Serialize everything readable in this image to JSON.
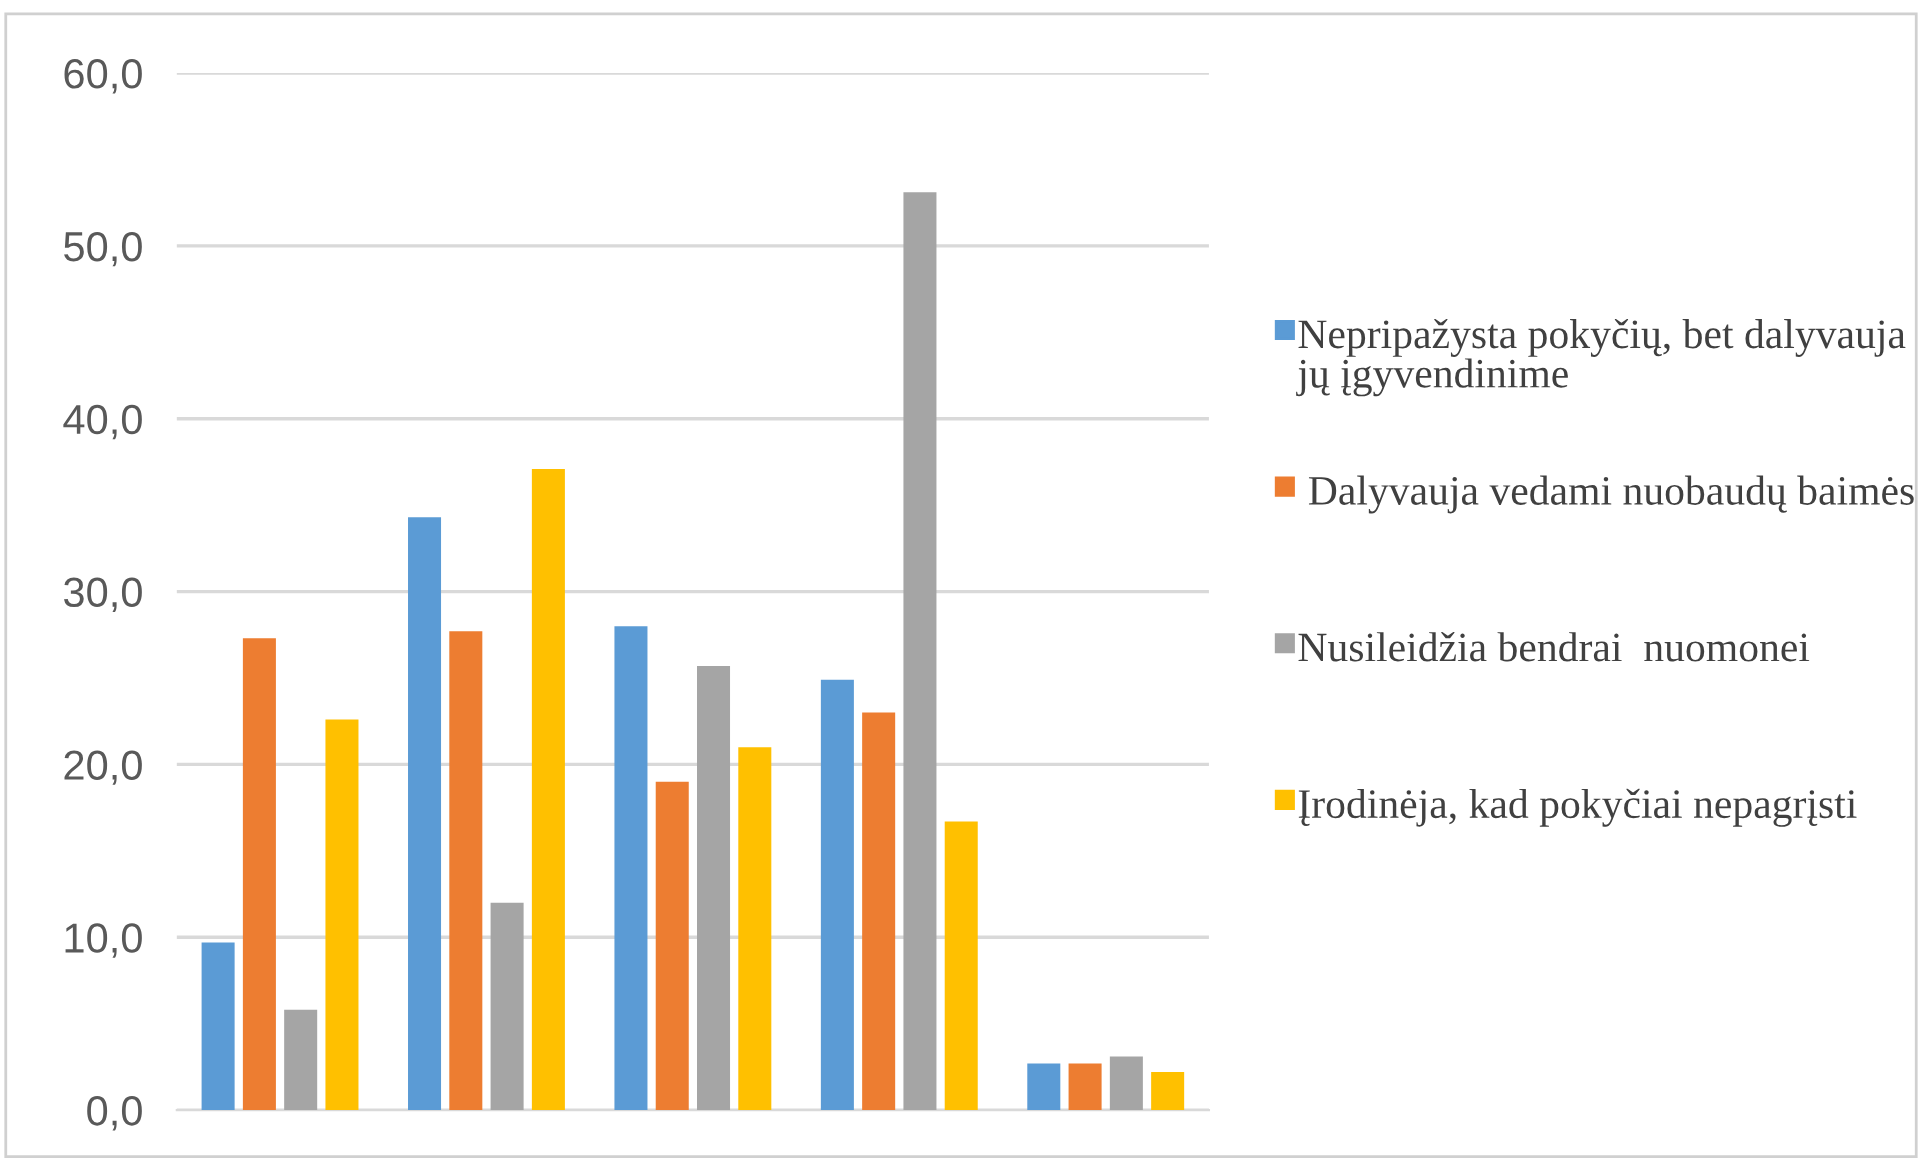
{
  "chart_data": {
    "type": "bar",
    "categories": [
      null,
      null,
      null,
      null,
      null
    ],
    "series": [
      {
        "name": "Nepripažysta pokyčių, bet dalyvauja jų įgyvendinime",
        "color": "#5b9bd5",
        "values": [
          9.7,
          34.3,
          28.0,
          24.9,
          2.7
        ]
      },
      {
        "name": " Dalyvauja vedami nuobaudų baimės",
        "color": "#ed7d31",
        "values": [
          27.3,
          27.7,
          19.0,
          23.0,
          2.7
        ]
      },
      {
        "name": "Nusileidžia bendrai  nuomonei",
        "color": "#a5a5a5",
        "values": [
          5.8,
          12.0,
          25.7,
          53.1,
          3.1
        ]
      },
      {
        "name": "Įrodinėja, kad pokyčiai nepagrįsti",
        "color": "#ffc000",
        "values": [
          22.6,
          37.1,
          21.0,
          16.7,
          2.2
        ]
      }
    ],
    "ylim": [
      0,
      60
    ],
    "yticks": [
      {
        "value": 0,
        "label": "0,0"
      },
      {
        "value": 10,
        "label": "10,0"
      },
      {
        "value": 20,
        "label": "20,0"
      },
      {
        "value": 30,
        "label": "30,0"
      },
      {
        "value": 40,
        "label": "40,0"
      },
      {
        "value": 50,
        "label": "50,0"
      },
      {
        "value": 60,
        "label": "60,0"
      }
    ],
    "grid": "y",
    "legend": "right"
  }
}
